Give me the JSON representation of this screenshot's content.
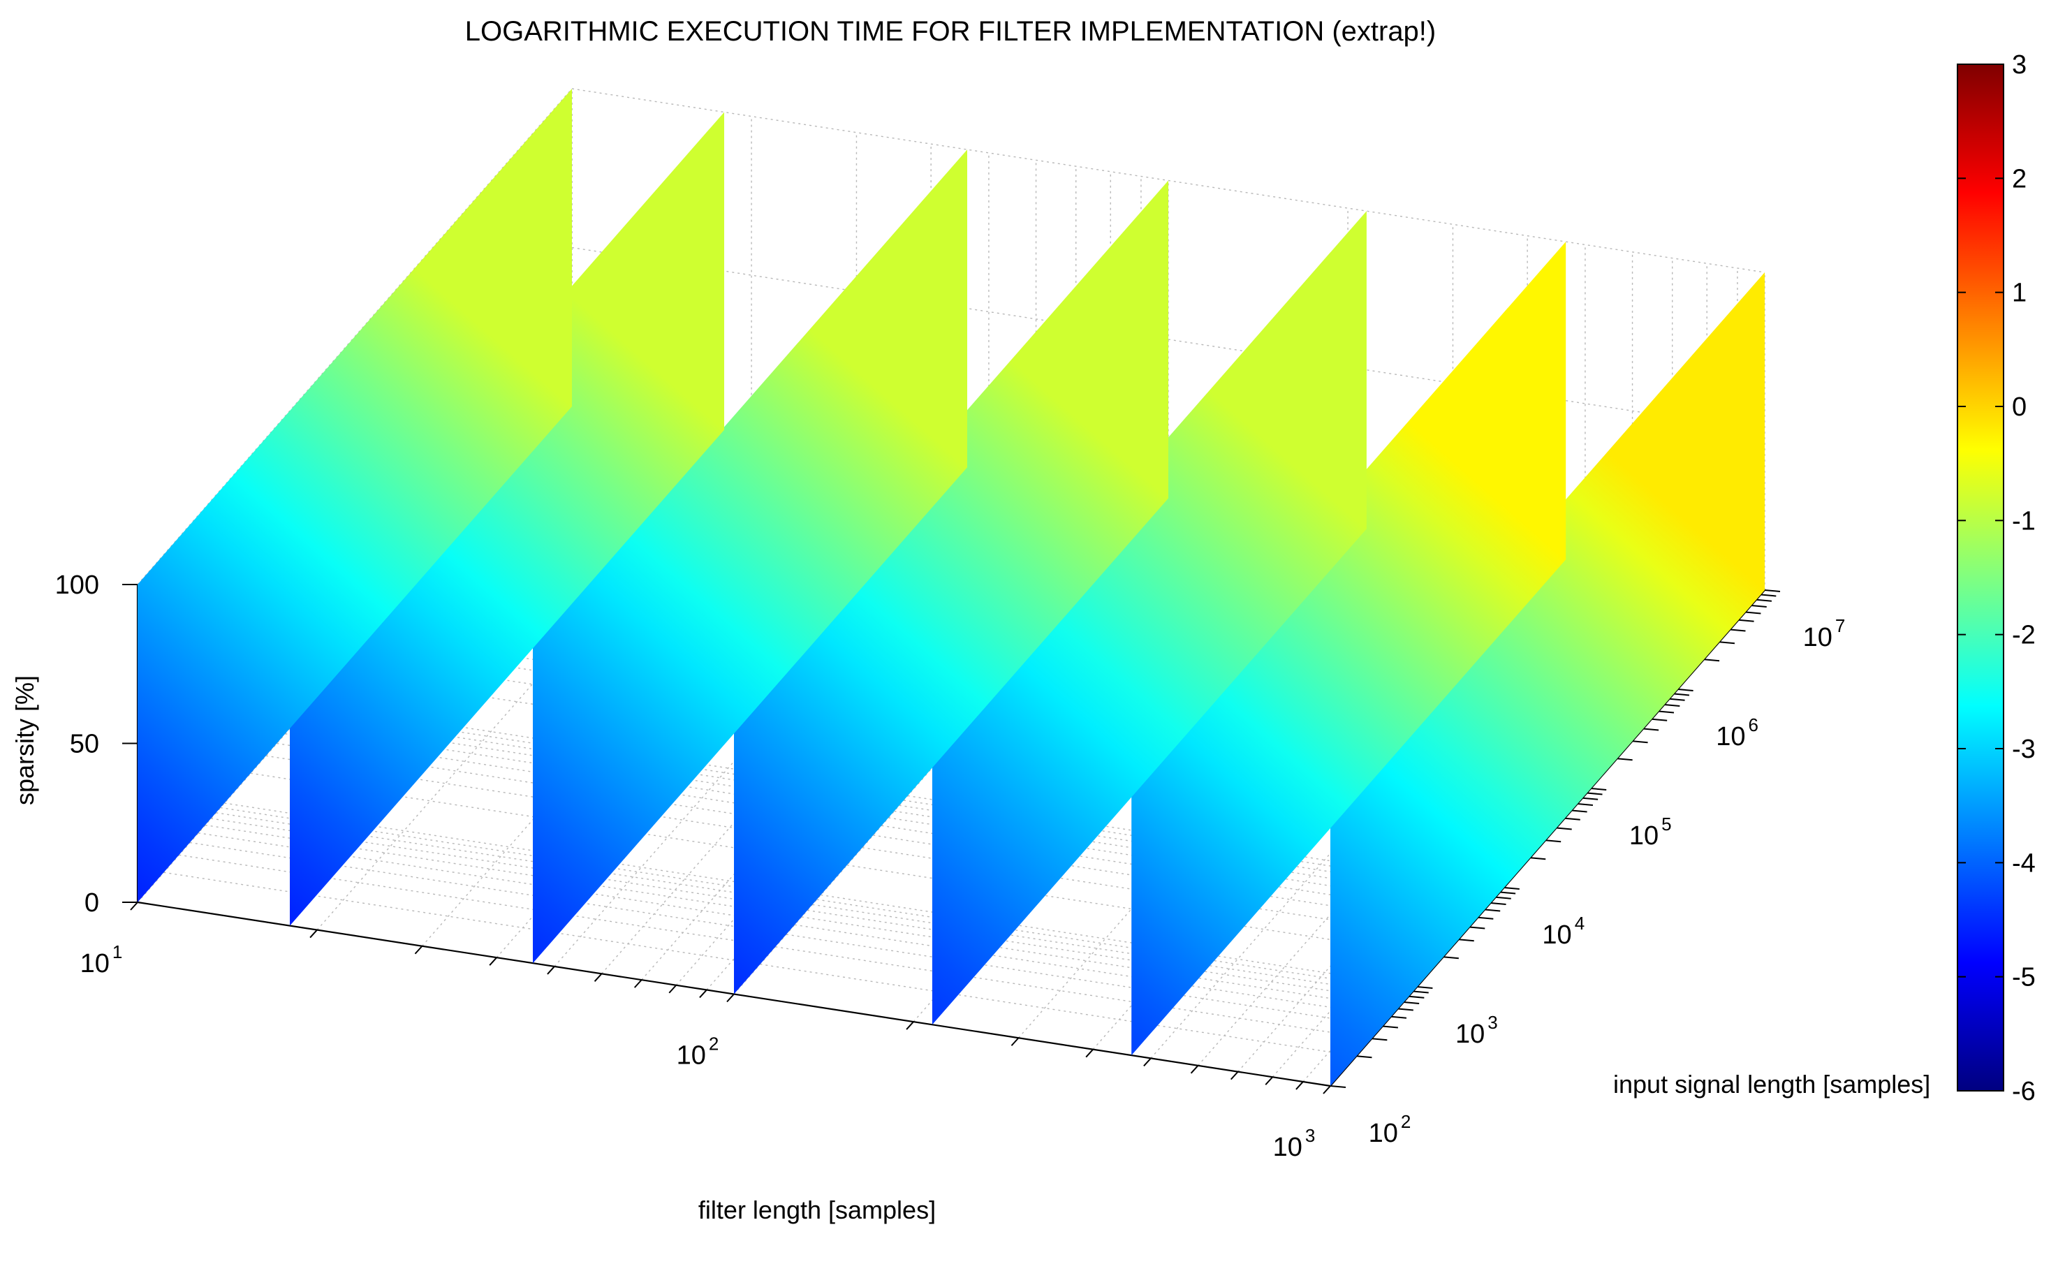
{
  "chart_data": {
    "type": "surface3d",
    "title": "LOGARITHMIC EXECUTION TIME FOR FILTER IMPLEMENTATION (extrap!)",
    "xlabel": "filter length [samples]",
    "ylabel": "input signal length [samples]",
    "zlabel": "sparsity [%]",
    "x_scale": "log",
    "y_scale": "log",
    "colorbar_label": "",
    "x_ticks": [
      {
        "base": "10",
        "exp": "1"
      },
      {
        "base": "10",
        "exp": "2"
      },
      {
        "base": "10",
        "exp": "3"
      }
    ],
    "y_ticks": [
      {
        "base": "10",
        "exp": "2"
      },
      {
        "base": "10",
        "exp": "3"
      },
      {
        "base": "10",
        "exp": "4"
      },
      {
        "base": "10",
        "exp": "5"
      },
      {
        "base": "10",
        "exp": "6"
      },
      {
        "base": "10",
        "exp": "7"
      }
    ],
    "z_ticks": [
      "0",
      "50",
      "100"
    ],
    "colorbar_ticks": [
      "3",
      "2",
      "1",
      "0",
      "-1",
      "-2",
      "-3",
      "-4",
      "-5",
      "-6"
    ],
    "colorbar_range": [
      -6,
      3
    ],
    "colormap": "jet",
    "zlim": [
      0,
      100
    ],
    "grid": true,
    "legend": "none",
    "series": [
      {
        "filter_length": 10,
        "value_at_min_signal": -4.6,
        "value_at_max_signal": -0.8
      },
      {
        "filter_length": 18,
        "value_at_min_signal": -4.6,
        "value_at_max_signal": -0.8
      },
      {
        "filter_length": 46,
        "value_at_min_signal": -4.5,
        "value_at_max_signal": -0.8
      },
      {
        "filter_length": 100,
        "value_at_min_signal": -4.5,
        "value_at_max_signal": -0.8
      },
      {
        "filter_length": 215,
        "value_at_min_signal": -4.4,
        "value_at_max_signal": -0.8
      },
      {
        "filter_length": 464,
        "value_at_min_signal": -4.3,
        "value_at_max_signal": -0.3
      },
      {
        "filter_length": 1000,
        "value_at_min_signal": -4.1,
        "value_at_max_signal": -0.2
      }
    ]
  }
}
